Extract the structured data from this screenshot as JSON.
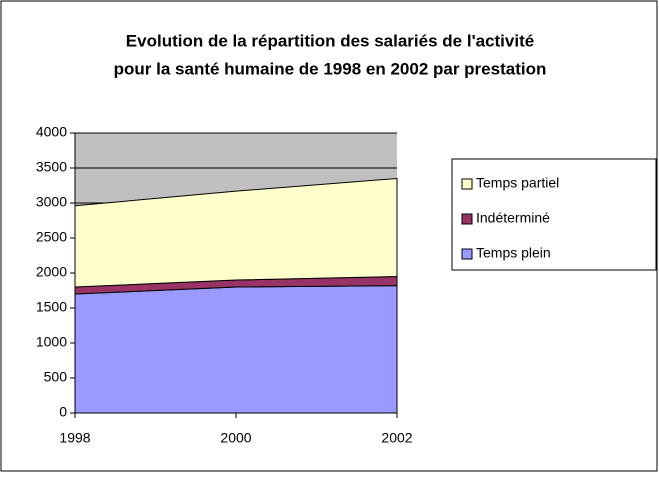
{
  "chart_data": {
    "type": "stacked_area",
    "title": [
      "Evolution de la répartition des salariés de l'activité",
      "pour la santé humaine de 1998 en 2002 par prestation"
    ],
    "x": [
      1998,
      2000,
      2002
    ],
    "series": [
      {
        "name": "Temps plein",
        "color": "#9999ff",
        "values": [
          1700,
          1800,
          1820
        ]
      },
      {
        "name": "Indéterminé",
        "color": "#993366",
        "values": [
          100,
          100,
          130
        ]
      },
      {
        "name": "Temps partiel",
        "color": "#ffffcc",
        "values": [
          1160,
          1270,
          1400
        ]
      }
    ],
    "xlim": [
      1998,
      2002
    ],
    "xticks": [
      1998,
      2000,
      2002
    ],
    "ylim": [
      0,
      4000
    ],
    "yticks": [
      0,
      500,
      1000,
      1500,
      2000,
      2500,
      3000,
      3500,
      4000
    ],
    "grid": true,
    "plot_background": "#c0c0c0",
    "legend": "right"
  }
}
